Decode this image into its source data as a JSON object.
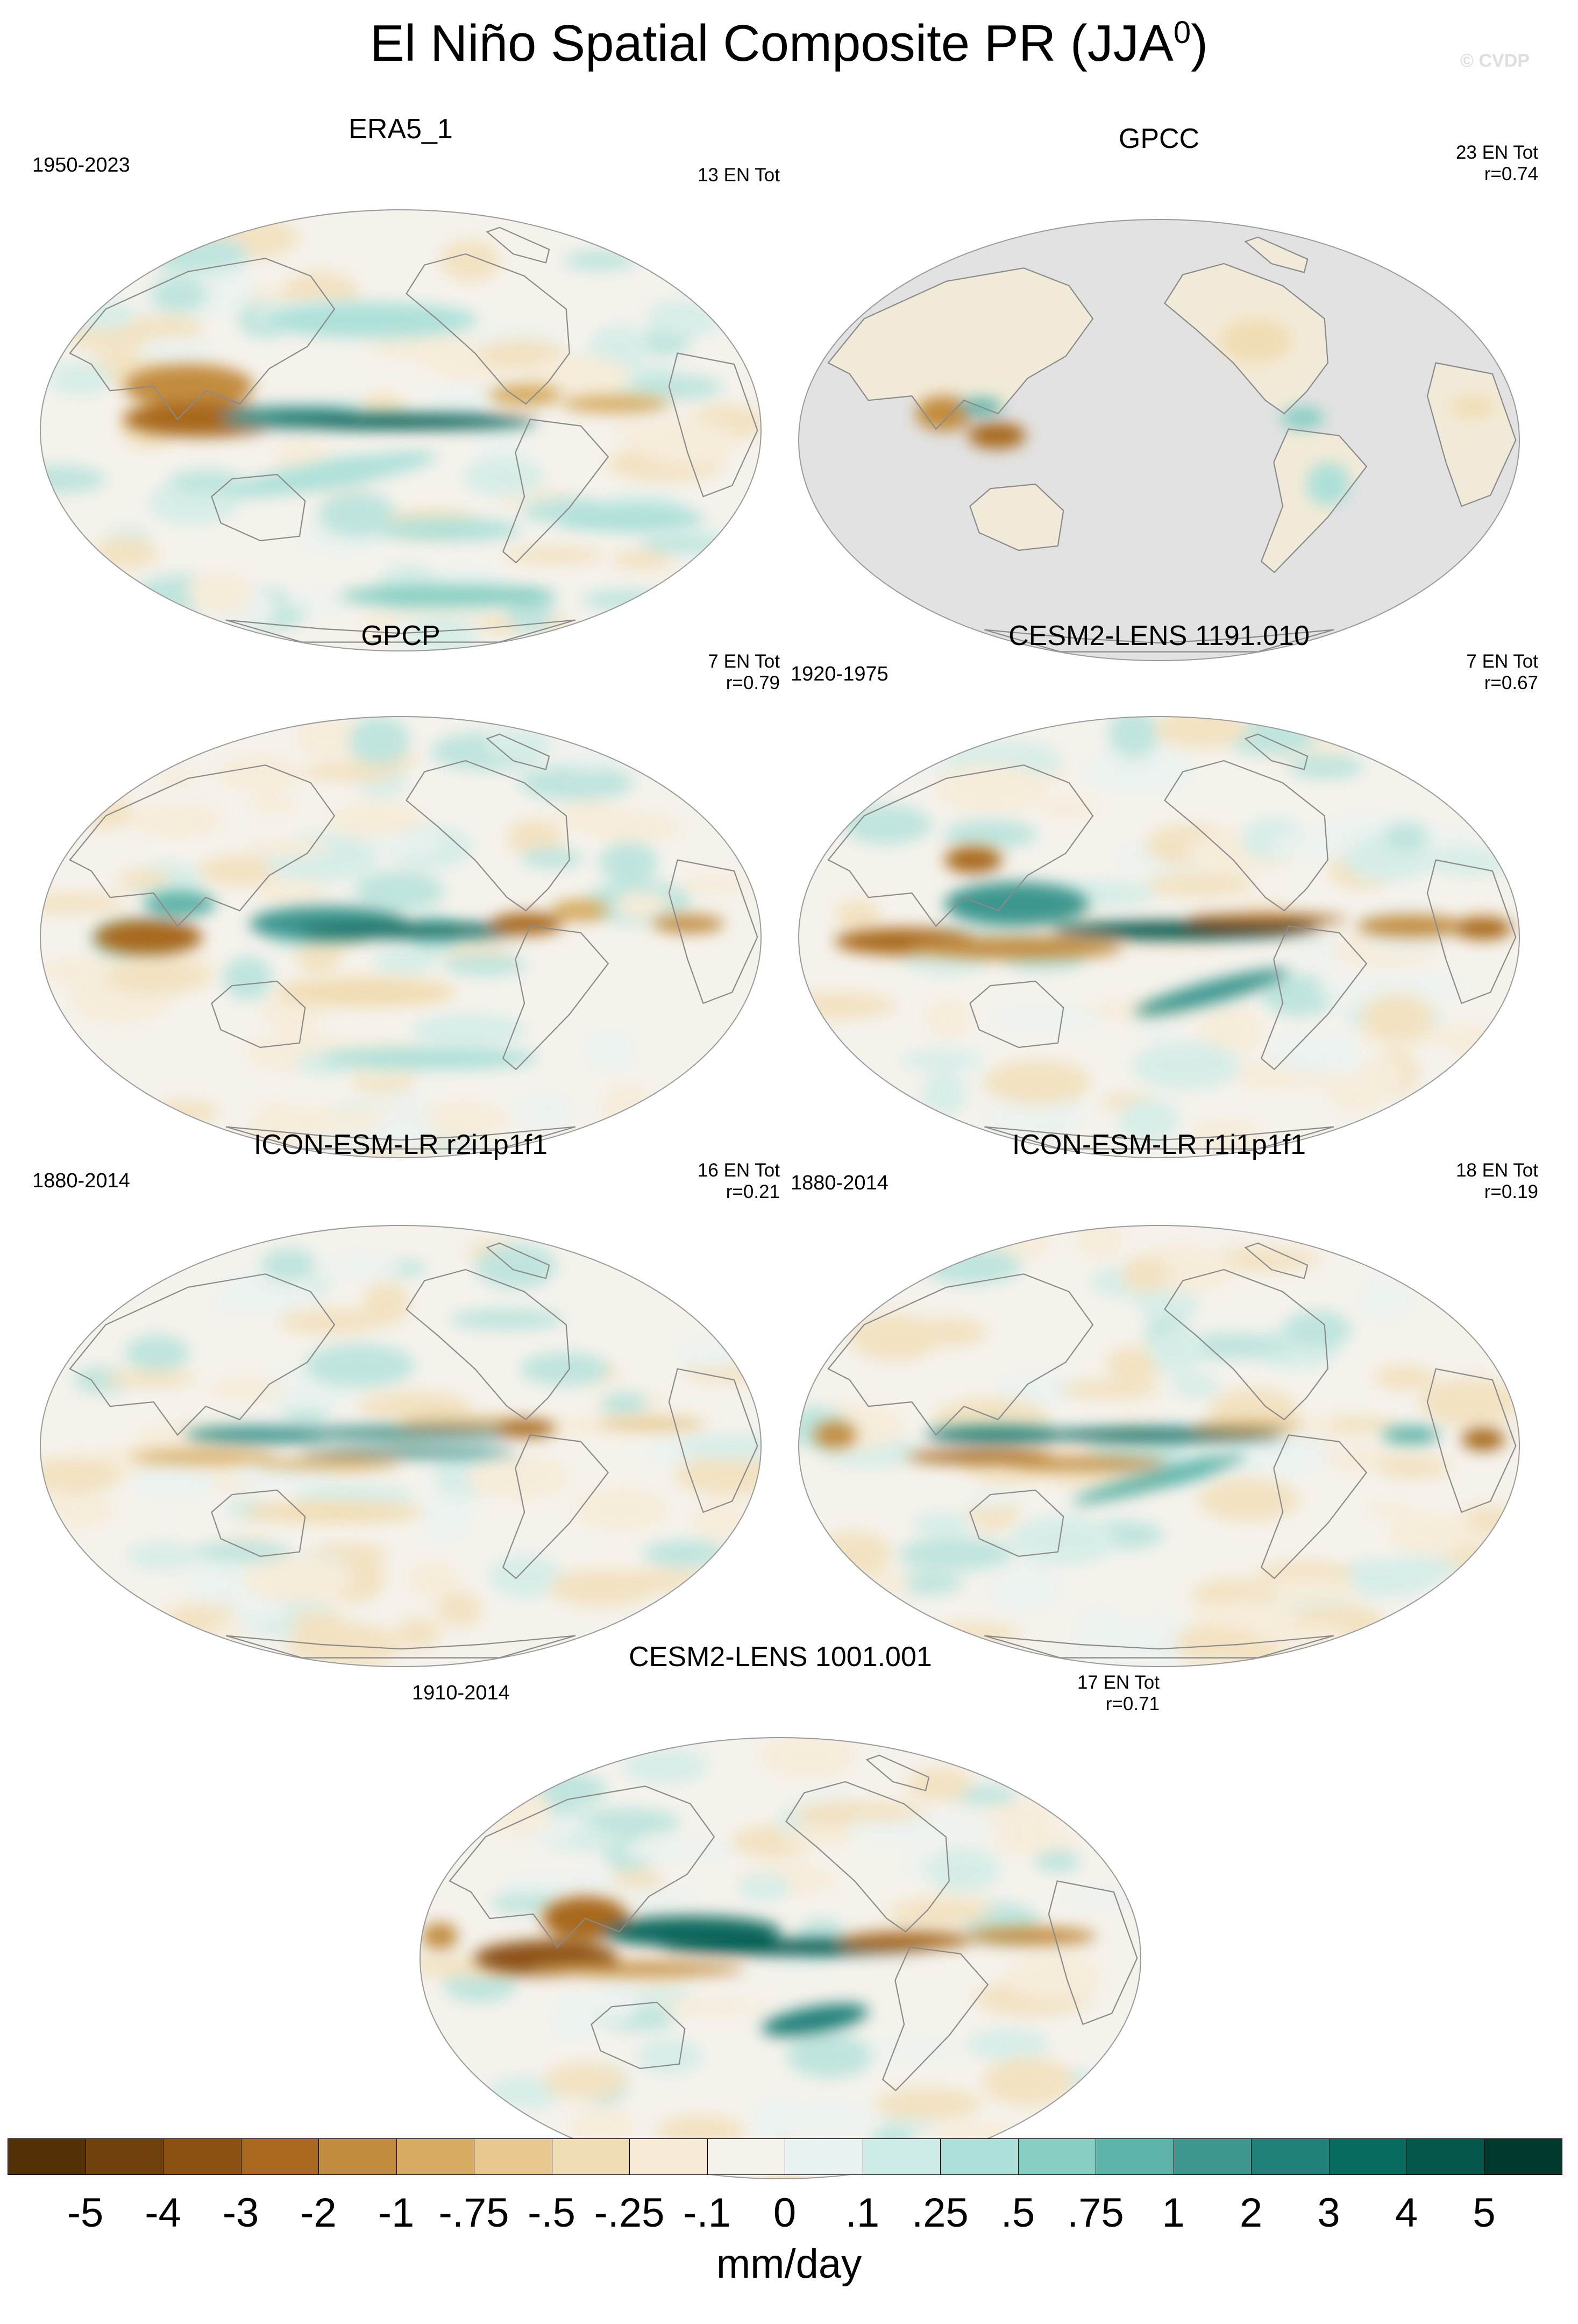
{
  "title": "El Niño Spatial Composite PR (JJA",
  "title_sup": "0",
  "title_close": ")",
  "copyright": "© CVDP",
  "panels": [
    {
      "name": "ERA5_1",
      "years": "1950-2023",
      "stats1": "13 EN Tot",
      "stats2": "",
      "ocean_masked": false
    },
    {
      "name": "GPCC",
      "years": "",
      "stats1": "23 EN Tot",
      "stats2": "r=0.74",
      "ocean_masked": true
    },
    {
      "name": "GPCP",
      "years": "",
      "stats1": "7 EN Tot",
      "stats2": "r=0.79",
      "ocean_masked": false
    },
    {
      "name": "CESM2-LENS 1191.010",
      "years": "1920-1975",
      "stats1": "7 EN Tot",
      "stats2": "r=0.67",
      "ocean_masked": false
    },
    {
      "name": "ICON-ESM-LR r2i1p1f1",
      "years": "1880-2014",
      "stats1": "16 EN Tot",
      "stats2": "r=0.21",
      "ocean_masked": false
    },
    {
      "name": "ICON-ESM-LR r1i1p1f1",
      "years": "1880-2014",
      "stats1": "18 EN Tot",
      "stats2": "r=0.19",
      "ocean_masked": false
    },
    {
      "name": "CESM2-LENS 1001.001",
      "years": "1910-2014",
      "stats1": "17 EN Tot",
      "stats2": "r=0.71",
      "ocean_masked": false
    }
  ],
  "colorbar": {
    "colors": [
      "#543005",
      "#6f420b",
      "#8c5112",
      "#a8691f",
      "#c28c3f",
      "#d6ac62",
      "#e7c98f",
      "#f1ddb4",
      "#f6ead4",
      "#f5f2ec",
      "#e8f2f0",
      "#cdebe6",
      "#ade0d9",
      "#88cfc3",
      "#5fb4a9",
      "#3e978f",
      "#20817a",
      "#076a5e",
      "#04554a",
      "#01392f"
    ],
    "labels": [
      "-5",
      "-4",
      "-3",
      "-2",
      "-1",
      "-.75",
      "-.5",
      "-.25",
      "-.1",
      "0",
      ".1",
      ".25",
      ".5",
      ".75",
      "1",
      "2",
      "3",
      "4",
      "5"
    ],
    "units": "mm/day"
  }
}
